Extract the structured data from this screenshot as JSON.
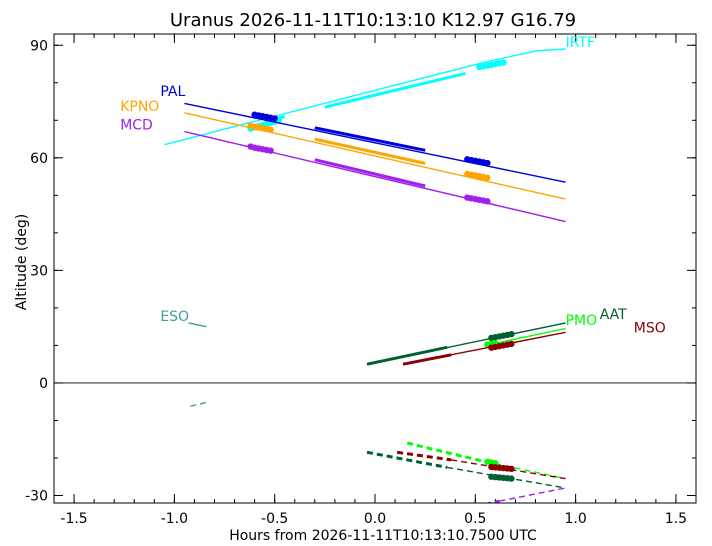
{
  "chart_data": {
    "type": "line",
    "title": "Uranus 2026-11-11T10:13:10  K12.97  G16.79",
    "xlabel": "Hours from 2026-11-11T10:13:10.7500 UTC",
    "ylabel": "Altitude (deg)",
    "xlim": [
      -1.6,
      1.6
    ],
    "ylim": [
      -32,
      93
    ],
    "x_ticks": [
      -1.5,
      -1.0,
      -0.5,
      0.0,
      0.5,
      1.0,
      1.5
    ],
    "x_tick_labels": [
      "-1.5",
      "-1.0",
      "-0.5",
      "0.0",
      "0.5",
      "1.0",
      "1.5"
    ],
    "y_ticks": [
      -30,
      0,
      30,
      60,
      90
    ],
    "y_tick_labels": [
      "-30",
      "0",
      "30",
      "60",
      "90"
    ],
    "zero_line": true,
    "grid": false,
    "series": [
      {
        "name": "IRTF",
        "color": "#00FFFF",
        "label_pos": {
          "x": 0.95,
          "y": 89.5
        },
        "segments": [
          {
            "style": "solid",
            "width": 1.4,
            "points": [
              [
                -1.05,
                63.5
              ],
              [
                0.0,
                78.0
              ],
              [
                0.55,
                85.5
              ],
              [
                0.8,
                88.5
              ],
              [
                0.95,
                89.0
              ]
            ]
          },
          {
            "style": "solid",
            "width": 3,
            "points": [
              [
                -0.55,
                69.5
              ],
              [
                -0.45,
                71.0
              ]
            ]
          },
          {
            "style": "solid",
            "width": 3,
            "points": [
              [
                -0.25,
                73.5
              ],
              [
                0.45,
                82.5
              ]
            ]
          }
        ],
        "dots": [
          [
            -0.62,
            67.8
          ],
          [
            -0.6,
            68.1
          ],
          [
            -0.58,
            68.4
          ],
          [
            -0.56,
            68.7
          ],
          [
            -0.54,
            69.0
          ],
          [
            -0.52,
            69.3
          ],
          [
            -0.5,
            69.6
          ],
          [
            -0.48,
            69.9
          ],
          [
            0.52,
            84.2
          ],
          [
            0.54,
            84.4
          ],
          [
            0.56,
            84.6
          ],
          [
            0.58,
            84.8
          ],
          [
            0.6,
            85.0
          ],
          [
            0.62,
            85.2
          ],
          [
            0.64,
            85.4
          ]
        ]
      },
      {
        "name": "PAL",
        "color": "#0000DD",
        "label_pos": {
          "x": -1.07,
          "y": 76.5
        },
        "segments": [
          {
            "style": "solid",
            "width": 1.4,
            "points": [
              [
                -0.95,
                74.5
              ],
              [
                0.95,
                53.5
              ]
            ]
          },
          {
            "style": "solid",
            "width": 3,
            "points": [
              [
                -0.3,
                68.0
              ],
              [
                0.25,
                62.0
              ]
            ]
          }
        ],
        "dots": [
          [
            -0.6,
            71.5
          ],
          [
            -0.58,
            71.3
          ],
          [
            -0.56,
            71.1
          ],
          [
            -0.54,
            70.9
          ],
          [
            -0.52,
            70.7
          ],
          [
            -0.5,
            70.5
          ],
          [
            0.46,
            59.6
          ],
          [
            0.48,
            59.4
          ],
          [
            0.5,
            59.2
          ],
          [
            0.52,
            59.0
          ],
          [
            0.54,
            58.8
          ],
          [
            0.56,
            58.6
          ]
        ]
      },
      {
        "name": "KPNO",
        "color": "#FFA500",
        "label_pos": {
          "x": -1.27,
          "y": 72.5
        },
        "segments": [
          {
            "style": "solid",
            "width": 1.4,
            "points": [
              [
                -0.95,
                72.0
              ],
              [
                0.95,
                49.0
              ]
            ]
          },
          {
            "style": "solid",
            "width": 3,
            "points": [
              [
                -0.3,
                65.0
              ],
              [
                0.25,
                58.5
              ]
            ]
          }
        ],
        "dots": [
          [
            -0.62,
            68.5
          ],
          [
            -0.6,
            68.3
          ],
          [
            -0.58,
            68.1
          ],
          [
            -0.56,
            67.9
          ],
          [
            -0.54,
            67.7
          ],
          [
            -0.52,
            67.5
          ],
          [
            0.46,
            55.7
          ],
          [
            0.48,
            55.5
          ],
          [
            0.5,
            55.3
          ],
          [
            0.52,
            55.1
          ],
          [
            0.54,
            54.9
          ],
          [
            0.56,
            54.7
          ]
        ]
      },
      {
        "name": "MCD",
        "color": "#A020F0",
        "label_pos": {
          "x": -1.27,
          "y": 67.5
        },
        "segments": [
          {
            "style": "solid",
            "width": 1.4,
            "points": [
              [
                -0.95,
                67.0
              ],
              [
                0.95,
                43.0
              ]
            ]
          },
          {
            "style": "solid",
            "width": 3,
            "points": [
              [
                -0.3,
                59.5
              ],
              [
                0.25,
                52.5
              ]
            ]
          }
        ],
        "dots": [
          [
            -0.62,
            63.0
          ],
          [
            -0.6,
            62.7
          ],
          [
            -0.58,
            62.5
          ],
          [
            -0.56,
            62.3
          ],
          [
            -0.54,
            62.1
          ],
          [
            -0.52,
            61.9
          ],
          [
            0.46,
            49.4
          ],
          [
            0.48,
            49.2
          ],
          [
            0.5,
            49.0
          ],
          [
            0.52,
            48.8
          ],
          [
            0.54,
            48.6
          ],
          [
            0.56,
            48.4
          ]
        ]
      },
      {
        "name": "ESO",
        "color": "#3CA096",
        "label_pos": {
          "x": -1.07,
          "y": 16.5
        },
        "segments": [
          {
            "style": "solid",
            "width": 1.4,
            "points": [
              [
                -0.93,
                16.0
              ],
              [
                -0.84,
                15.0
              ]
            ]
          },
          {
            "style": "dashed",
            "width": 1.4,
            "points": [
              [
                -0.92,
                -6.2
              ],
              [
                -0.84,
                -5.2
              ]
            ]
          }
        ],
        "dots": []
      },
      {
        "name": "PMO",
        "color": "#00FF00",
        "label_pos": {
          "x": 0.95,
          "y": 15.5
        },
        "segments": [
          {
            "style": "solid",
            "width": 1.4,
            "points": [
              [
                0.55,
                10.0
              ],
              [
                0.95,
                14.5
              ]
            ]
          },
          {
            "style": "dashed",
            "width": 3,
            "points": [
              [
                0.16,
                -16.0
              ],
              [
                0.55,
                -21.0
              ]
            ]
          },
          {
            "style": "dashed",
            "width": 1.4,
            "points": [
              [
                0.55,
                -21.0
              ],
              [
                0.95,
                -25.5
              ]
            ]
          }
        ],
        "dots": [
          [
            0.56,
            10.2
          ],
          [
            0.58,
            10.4
          ],
          [
            0.6,
            10.6
          ],
          [
            0.56,
            -21.0
          ],
          [
            0.58,
            -21.2
          ],
          [
            0.6,
            -21.4
          ]
        ]
      },
      {
        "name": "AAT",
        "color": "#006030",
        "label_pos": {
          "x": 1.12,
          "y": 17.0
        },
        "segments": [
          {
            "style": "solid",
            "width": 1.4,
            "points": [
              [
                -0.04,
                5.0
              ],
              [
                0.95,
                16.0
              ]
            ]
          },
          {
            "style": "solid",
            "width": 3,
            "points": [
              [
                -0.04,
                5.0
              ],
              [
                0.36,
                9.5
              ]
            ]
          },
          {
            "style": "dashed",
            "width": 3,
            "points": [
              [
                -0.04,
                -18.5
              ],
              [
                0.36,
                -22.5
              ]
            ]
          },
          {
            "style": "dashed",
            "width": 1.4,
            "points": [
              [
                0.36,
                -22.5
              ],
              [
                0.95,
                -28.0
              ]
            ]
          }
        ],
        "dots": [
          [
            0.58,
            12.0
          ],
          [
            0.6,
            12.2
          ],
          [
            0.62,
            12.4
          ],
          [
            0.64,
            12.6
          ],
          [
            0.66,
            12.8
          ],
          [
            0.68,
            13.0
          ],
          [
            0.58,
            -25.0
          ],
          [
            0.6,
            -25.1
          ],
          [
            0.62,
            -25.2
          ],
          [
            0.64,
            -25.3
          ],
          [
            0.66,
            -25.4
          ],
          [
            0.68,
            -25.5
          ]
        ]
      },
      {
        "name": "MSO",
        "color": "#8B0000",
        "label_pos": {
          "x": 1.29,
          "y": 13.5
        },
        "segments": [
          {
            "style": "solid",
            "width": 1.4,
            "points": [
              [
                0.14,
                5.0
              ],
              [
                0.95,
                13.5
              ]
            ]
          },
          {
            "style": "solid",
            "width": 3,
            "points": [
              [
                0.14,
                5.0
              ],
              [
                0.38,
                7.5
              ]
            ]
          },
          {
            "style": "dashed",
            "width": 3,
            "points": [
              [
                0.11,
                -18.5
              ],
              [
                0.38,
                -20.5
              ]
            ]
          },
          {
            "style": "dashed",
            "width": 1.4,
            "points": [
              [
                0.38,
                -20.5
              ],
              [
                0.95,
                -25.5
              ]
            ]
          }
        ],
        "dots": [
          [
            0.58,
            9.4
          ],
          [
            0.6,
            9.6
          ],
          [
            0.62,
            9.8
          ],
          [
            0.64,
            10.0
          ],
          [
            0.66,
            10.2
          ],
          [
            0.68,
            10.4
          ],
          [
            0.58,
            -22.4
          ],
          [
            0.6,
            -22.5
          ],
          [
            0.62,
            -22.6
          ],
          [
            0.64,
            -22.7
          ],
          [
            0.66,
            -22.8
          ],
          [
            0.68,
            -22.9
          ]
        ]
      },
      {
        "name": "",
        "color": "#A020F0",
        "segments": [
          {
            "style": "dashed",
            "width": 3,
            "points": [
              [
                0.5,
                -33.0
              ],
              [
                0.62,
                -31.5
              ]
            ]
          },
          {
            "style": "dashed",
            "width": 1.4,
            "points": [
              [
                0.62,
                -31.5
              ],
              [
                0.95,
                -28.0
              ]
            ]
          }
        ],
        "dots": []
      }
    ]
  }
}
